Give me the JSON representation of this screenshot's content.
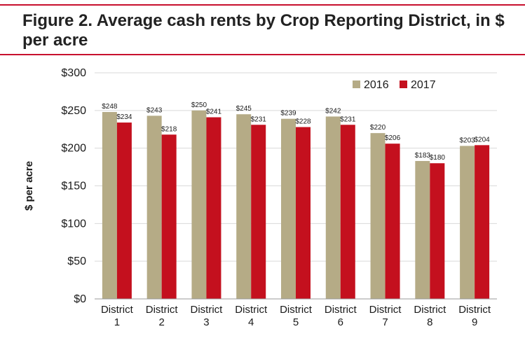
{
  "figure": {
    "title": "Figure 2. Average cash rents by Crop Reporting District, in $ per acre"
  },
  "colors": {
    "rule": "#c8102e",
    "series_2016": "#b5ab86",
    "series_2017": "#c4101e",
    "grid": "#d9d9d9",
    "axis": "#999999"
  },
  "chart_data": {
    "type": "bar",
    "title": "Figure 2. Average cash rents by Crop Reporting District, in $ per acre",
    "xlabel": "",
    "ylabel": "$ per acre",
    "ylim": [
      0,
      300
    ],
    "yticks": [
      0,
      50,
      100,
      150,
      200,
      250,
      300
    ],
    "ytick_labels": [
      "$0",
      "$50",
      "$100",
      "$150",
      "$200",
      "$250",
      "$300"
    ],
    "grid": true,
    "legend": "top-right",
    "categories": [
      [
        "District",
        "1"
      ],
      [
        "District",
        "2"
      ],
      [
        "District",
        "3"
      ],
      [
        "District",
        "4"
      ],
      [
        "District",
        "5"
      ],
      [
        "District",
        "6"
      ],
      [
        "District",
        "7"
      ],
      [
        "District",
        "8"
      ],
      [
        "District",
        "9"
      ]
    ],
    "series": [
      {
        "name": "2016",
        "values": [
          248,
          243,
          250,
          245,
          239,
          242,
          220,
          183,
          203
        ],
        "labels": [
          "$248",
          "$243",
          "$250",
          "$245",
          "$239",
          "$242",
          "$220",
          "$183",
          "$203"
        ]
      },
      {
        "name": "2017",
        "values": [
          234,
          218,
          241,
          231,
          228,
          231,
          206,
          180,
          204
        ],
        "labels": [
          "$234",
          "$218",
          "$241",
          "$231",
          "$228",
          "$231",
          "$206",
          "$180",
          "$204"
        ]
      }
    ]
  }
}
